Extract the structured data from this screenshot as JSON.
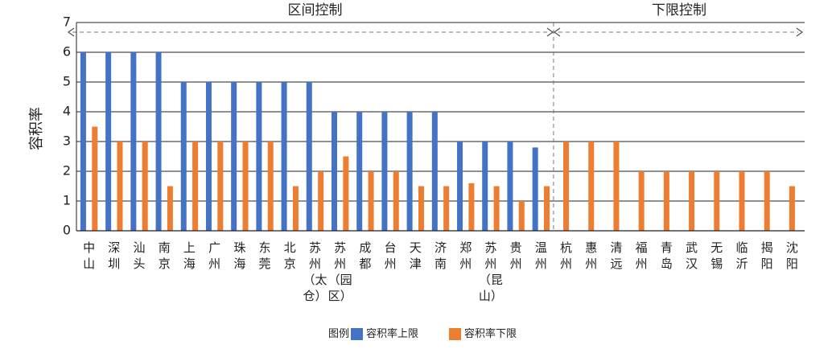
{
  "chart_data": {
    "type": "bar",
    "ylabel": "容积率",
    "ylim": [
      0,
      7
    ],
    "yticks": [
      "0",
      "1",
      "2",
      "3",
      "4",
      "5",
      "6",
      "7"
    ],
    "grid": "horizontal",
    "regions": [
      {
        "label": "区间控制",
        "start_index": 0,
        "end_index": 18
      },
      {
        "label": "下限控制",
        "start_index": 19,
        "end_index": 28
      }
    ],
    "categories": [
      "中山",
      "深圳",
      "汕头",
      "南京",
      "上海",
      "广州",
      "珠海",
      "东莞",
      "北京",
      "苏州（太仓）",
      "苏州（园区）",
      "成都",
      "台州",
      "天津",
      "济南",
      "郑州",
      "苏州（昆山）",
      "贵州",
      "温州",
      "杭州",
      "惠州",
      "清远",
      "福州",
      "青岛",
      "武汉",
      "无锡",
      "临沂",
      "揭阳",
      "沈阳"
    ],
    "category_lines": [
      [
        "中",
        "山"
      ],
      [
        "深",
        "圳"
      ],
      [
        "汕",
        "头"
      ],
      [
        "南",
        "京"
      ],
      [
        "上",
        "海"
      ],
      [
        "广",
        "州"
      ],
      [
        "珠",
        "海"
      ],
      [
        "东",
        "莞"
      ],
      [
        "北",
        "京"
      ],
      [
        "苏",
        "州",
        "（太",
        "仓）"
      ],
      [
        "苏",
        "州",
        "（园",
        "区）"
      ],
      [
        "成",
        "都"
      ],
      [
        "台",
        "州"
      ],
      [
        "天",
        "津"
      ],
      [
        "济",
        "南"
      ],
      [
        "郑",
        "州"
      ],
      [
        "苏",
        "州",
        "（昆",
        "山）"
      ],
      [
        "贵",
        "州"
      ],
      [
        "温",
        "州"
      ],
      [
        "杭",
        "州"
      ],
      [
        "惠",
        "州"
      ],
      [
        "清",
        "远"
      ],
      [
        "福",
        "州"
      ],
      [
        "青",
        "岛"
      ],
      [
        "武",
        "汉"
      ],
      [
        "无",
        "锡"
      ],
      [
        "临",
        "沂"
      ],
      [
        "揭",
        "阳"
      ],
      [
        "沈",
        "阳"
      ]
    ],
    "series": [
      {
        "name": "容积率上限",
        "color": "#4472c4",
        "values": [
          6,
          6,
          6,
          6,
          5,
          5,
          5,
          5,
          5,
          5,
          4,
          4,
          4,
          4,
          4,
          3,
          3,
          3,
          2.8,
          null,
          null,
          null,
          null,
          null,
          null,
          null,
          null,
          null,
          null
        ]
      },
      {
        "name": "容积率下限",
        "color": "#ed7d31",
        "values": [
          3.5,
          3,
          3,
          1.5,
          3,
          3,
          3,
          3,
          1.5,
          2,
          2.5,
          2,
          2,
          1.5,
          1.5,
          1.6,
          1.5,
          1,
          1.5,
          3,
          3,
          3,
          2,
          2,
          2,
          2,
          2,
          2,
          1.5
        ]
      }
    ],
    "legend": {
      "title": "图例",
      "placement": "bottom-center"
    }
  }
}
